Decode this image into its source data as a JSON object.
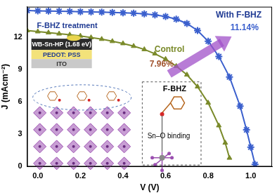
{
  "chart_data": {
    "type": "line",
    "x_label": "V (V)",
    "y_label": "J (mAcm⁻²)",
    "xlim": [
      -0.05,
      1.1
    ],
    "ylim": [
      0,
      14.8
    ],
    "xticks": [
      {
        "value": 0,
        "label": "0.0"
      },
      0.2,
      0.4,
      0.6,
      0.8,
      {
        "value": 1,
        "label": "1.0"
      }
    ],
    "yticks": [
      0,
      3,
      6,
      9,
      12
    ],
    "grid": false,
    "series": [
      {
        "name": "With F-BHZ",
        "color": "#3a5fcd",
        "marker": "star",
        "x": [
          -0.05,
          0,
          0.05,
          0.1,
          0.15,
          0.2,
          0.25,
          0.3,
          0.35,
          0.4,
          0.45,
          0.5,
          0.55,
          0.6,
          0.65,
          0.7,
          0.75,
          0.8,
          0.85,
          0.9,
          0.95,
          0.98,
          1.0,
          1.02
        ],
        "values": [
          14.45,
          14.42,
          14.4,
          14.38,
          14.36,
          14.34,
          14.32,
          14.3,
          14.27,
          14.24,
          14.2,
          14.14,
          14.05,
          13.9,
          13.65,
          13.25,
          12.6,
          11.6,
          10.2,
          8.3,
          5.6,
          3.4,
          1.8,
          0.2
        ]
      },
      {
        "name": "Control",
        "color": "#7a8a2a",
        "marker": "triangle",
        "x": [
          -0.05,
          0,
          0.05,
          0.1,
          0.15,
          0.2,
          0.25,
          0.3,
          0.35,
          0.4,
          0.45,
          0.5,
          0.55,
          0.6,
          0.65,
          0.7,
          0.75,
          0.8,
          0.85,
          0.88,
          0.9
        ],
        "values": [
          12.6,
          12.5,
          12.4,
          12.3,
          12.2,
          12.1,
          11.95,
          11.8,
          11.6,
          11.4,
          11.15,
          10.85,
          10.45,
          9.95,
          9.3,
          8.5,
          7.4,
          5.9,
          3.8,
          2.2,
          0.8
        ]
      }
    ],
    "annotations": [
      "11.14%",
      "7.96%",
      "F-BHZ treatment",
      "WB-Sn-HP (1.68 eV)",
      "PEDOT: PSS",
      "ITO",
      "F-BHZ",
      "Sn–O binding"
    ]
  }
}
